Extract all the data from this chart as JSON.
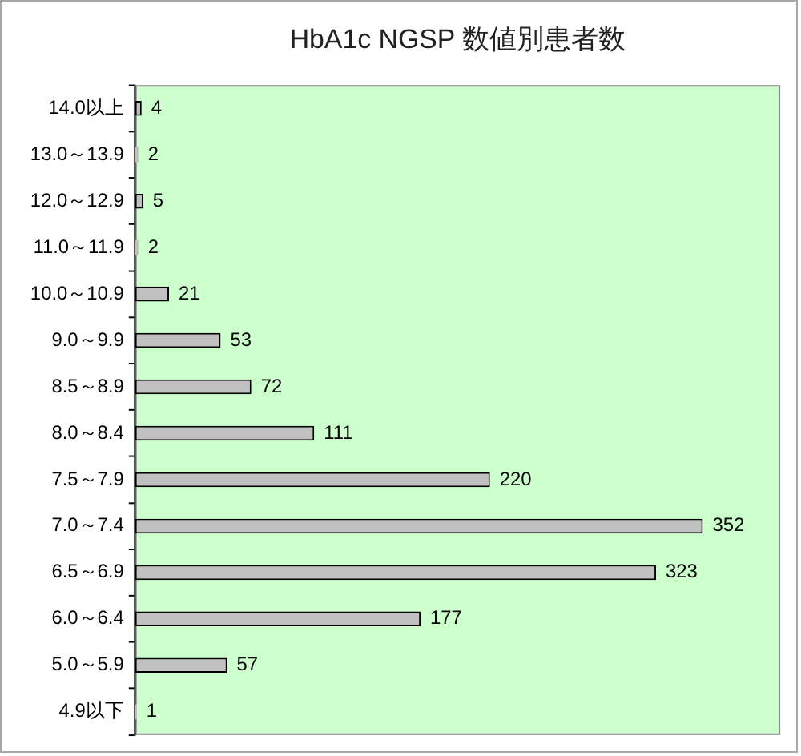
{
  "chart_data": {
    "type": "bar",
    "title": "HbA1c NGSP 数値別患者数",
    "orientation": "horizontal",
    "categories": [
      "14.0以上",
      "13.0～13.9",
      "12.0～12.9",
      "11.0～11.9",
      "10.0～10.9",
      "9.0～9.9",
      "8.5～8.9",
      "8.0～8.4",
      "7.5～7.9",
      "7.0～7.4",
      "6.5～6.9",
      "6.0～6.4",
      "5.0～5.9",
      "4.9以下"
    ],
    "values": [
      4,
      2,
      5,
      2,
      21,
      53,
      72,
      111,
      220,
      352,
      323,
      177,
      57,
      1
    ],
    "color": "#c0c0c0",
    "data_labels": true,
    "grid": false,
    "legend": false,
    "tick_labels": "y"
  }
}
